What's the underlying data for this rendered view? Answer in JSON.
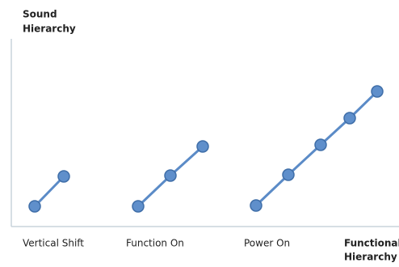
{
  "y_axis_label": [
    "Sound",
    "Hierarchy"
  ],
  "x_axis_label": [
    "Functional",
    "Hierarchy"
  ],
  "groups": [
    "Vertical Shift",
    "Function On",
    "Power On"
  ]
}
